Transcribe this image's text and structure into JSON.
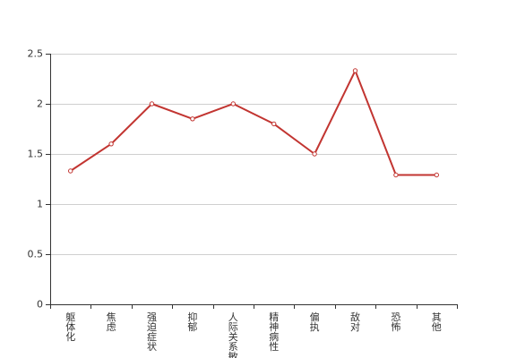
{
  "chart_data": {
    "type": "line",
    "title": "",
    "xlabel": "",
    "ylabel": "",
    "categories": [
      "躯体化",
      "焦虑",
      "强迫症状",
      "抑郁",
      "人际关系敏感",
      "精神病性",
      "偏执",
      "敌对",
      "恐怖",
      "其他"
    ],
    "series": [
      {
        "values": [
          1.33,
          1.6,
          2.0,
          1.85,
          2.0,
          1.8,
          1.5,
          2.33,
          1.29,
          1.29
        ]
      }
    ],
    "y_ticks": [
      "0",
      "0.5",
      "1",
      "1.5",
      "2",
      "2.5"
    ],
    "ylim": [
      0,
      2.5
    ],
    "grid": true,
    "legend": "none",
    "colors": {
      "series": "#c23531",
      "grid": "#cfcfcf",
      "axis": "#333333"
    }
  }
}
